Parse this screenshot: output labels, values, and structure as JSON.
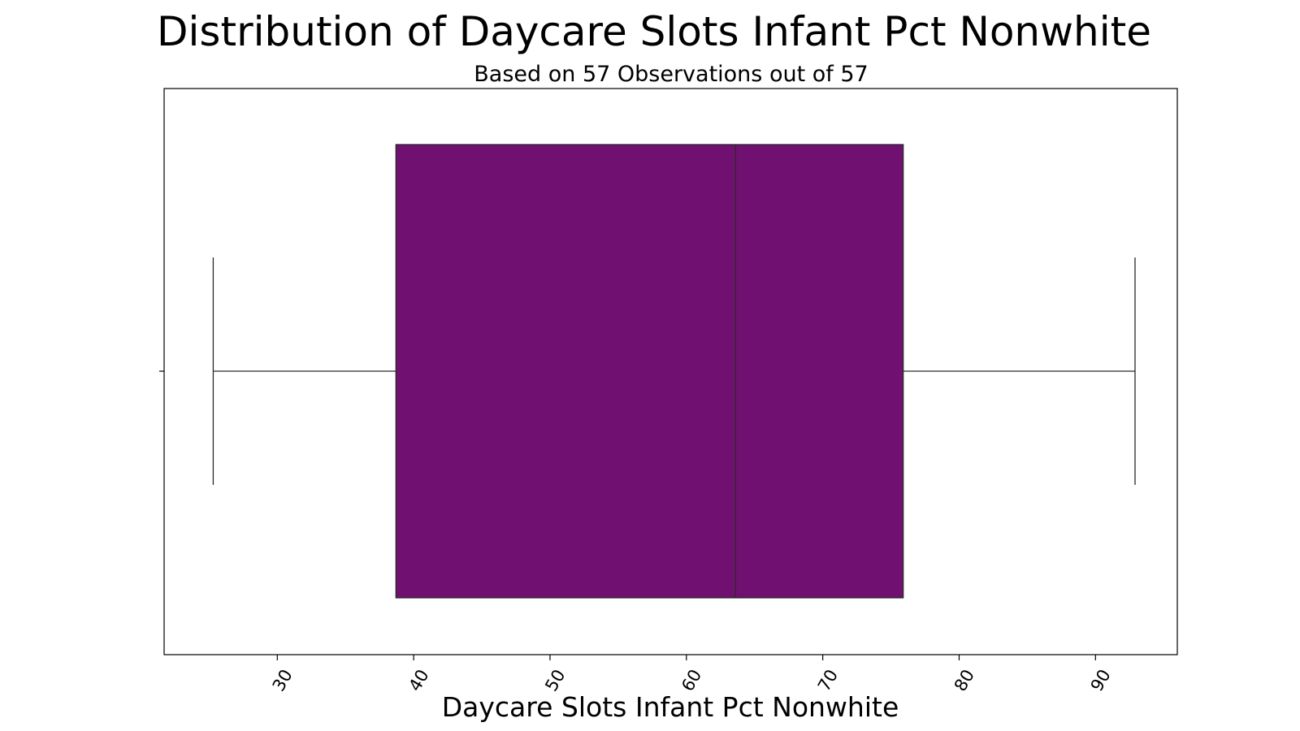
{
  "chart_data": {
    "type": "boxplot",
    "title": "Distribution of Daycare Slots Infant Pct Nonwhite",
    "subtitle": "Based on 57 Observations out of 57",
    "xlabel": "Daycare Slots Infant Pct Nonwhite",
    "ylabel": "",
    "orientation": "horizontal",
    "xlim": [
      21.7,
      96.0
    ],
    "xticks": [
      30,
      40,
      50,
      60,
      70,
      80,
      90
    ],
    "grid": false,
    "box": {
      "whisker_low": 25.3,
      "q1": 38.7,
      "median": 63.6,
      "q3": 75.9,
      "whisker_high": 92.9,
      "fill_color": "#701070",
      "edge_color": "#2a2a2a"
    }
  }
}
